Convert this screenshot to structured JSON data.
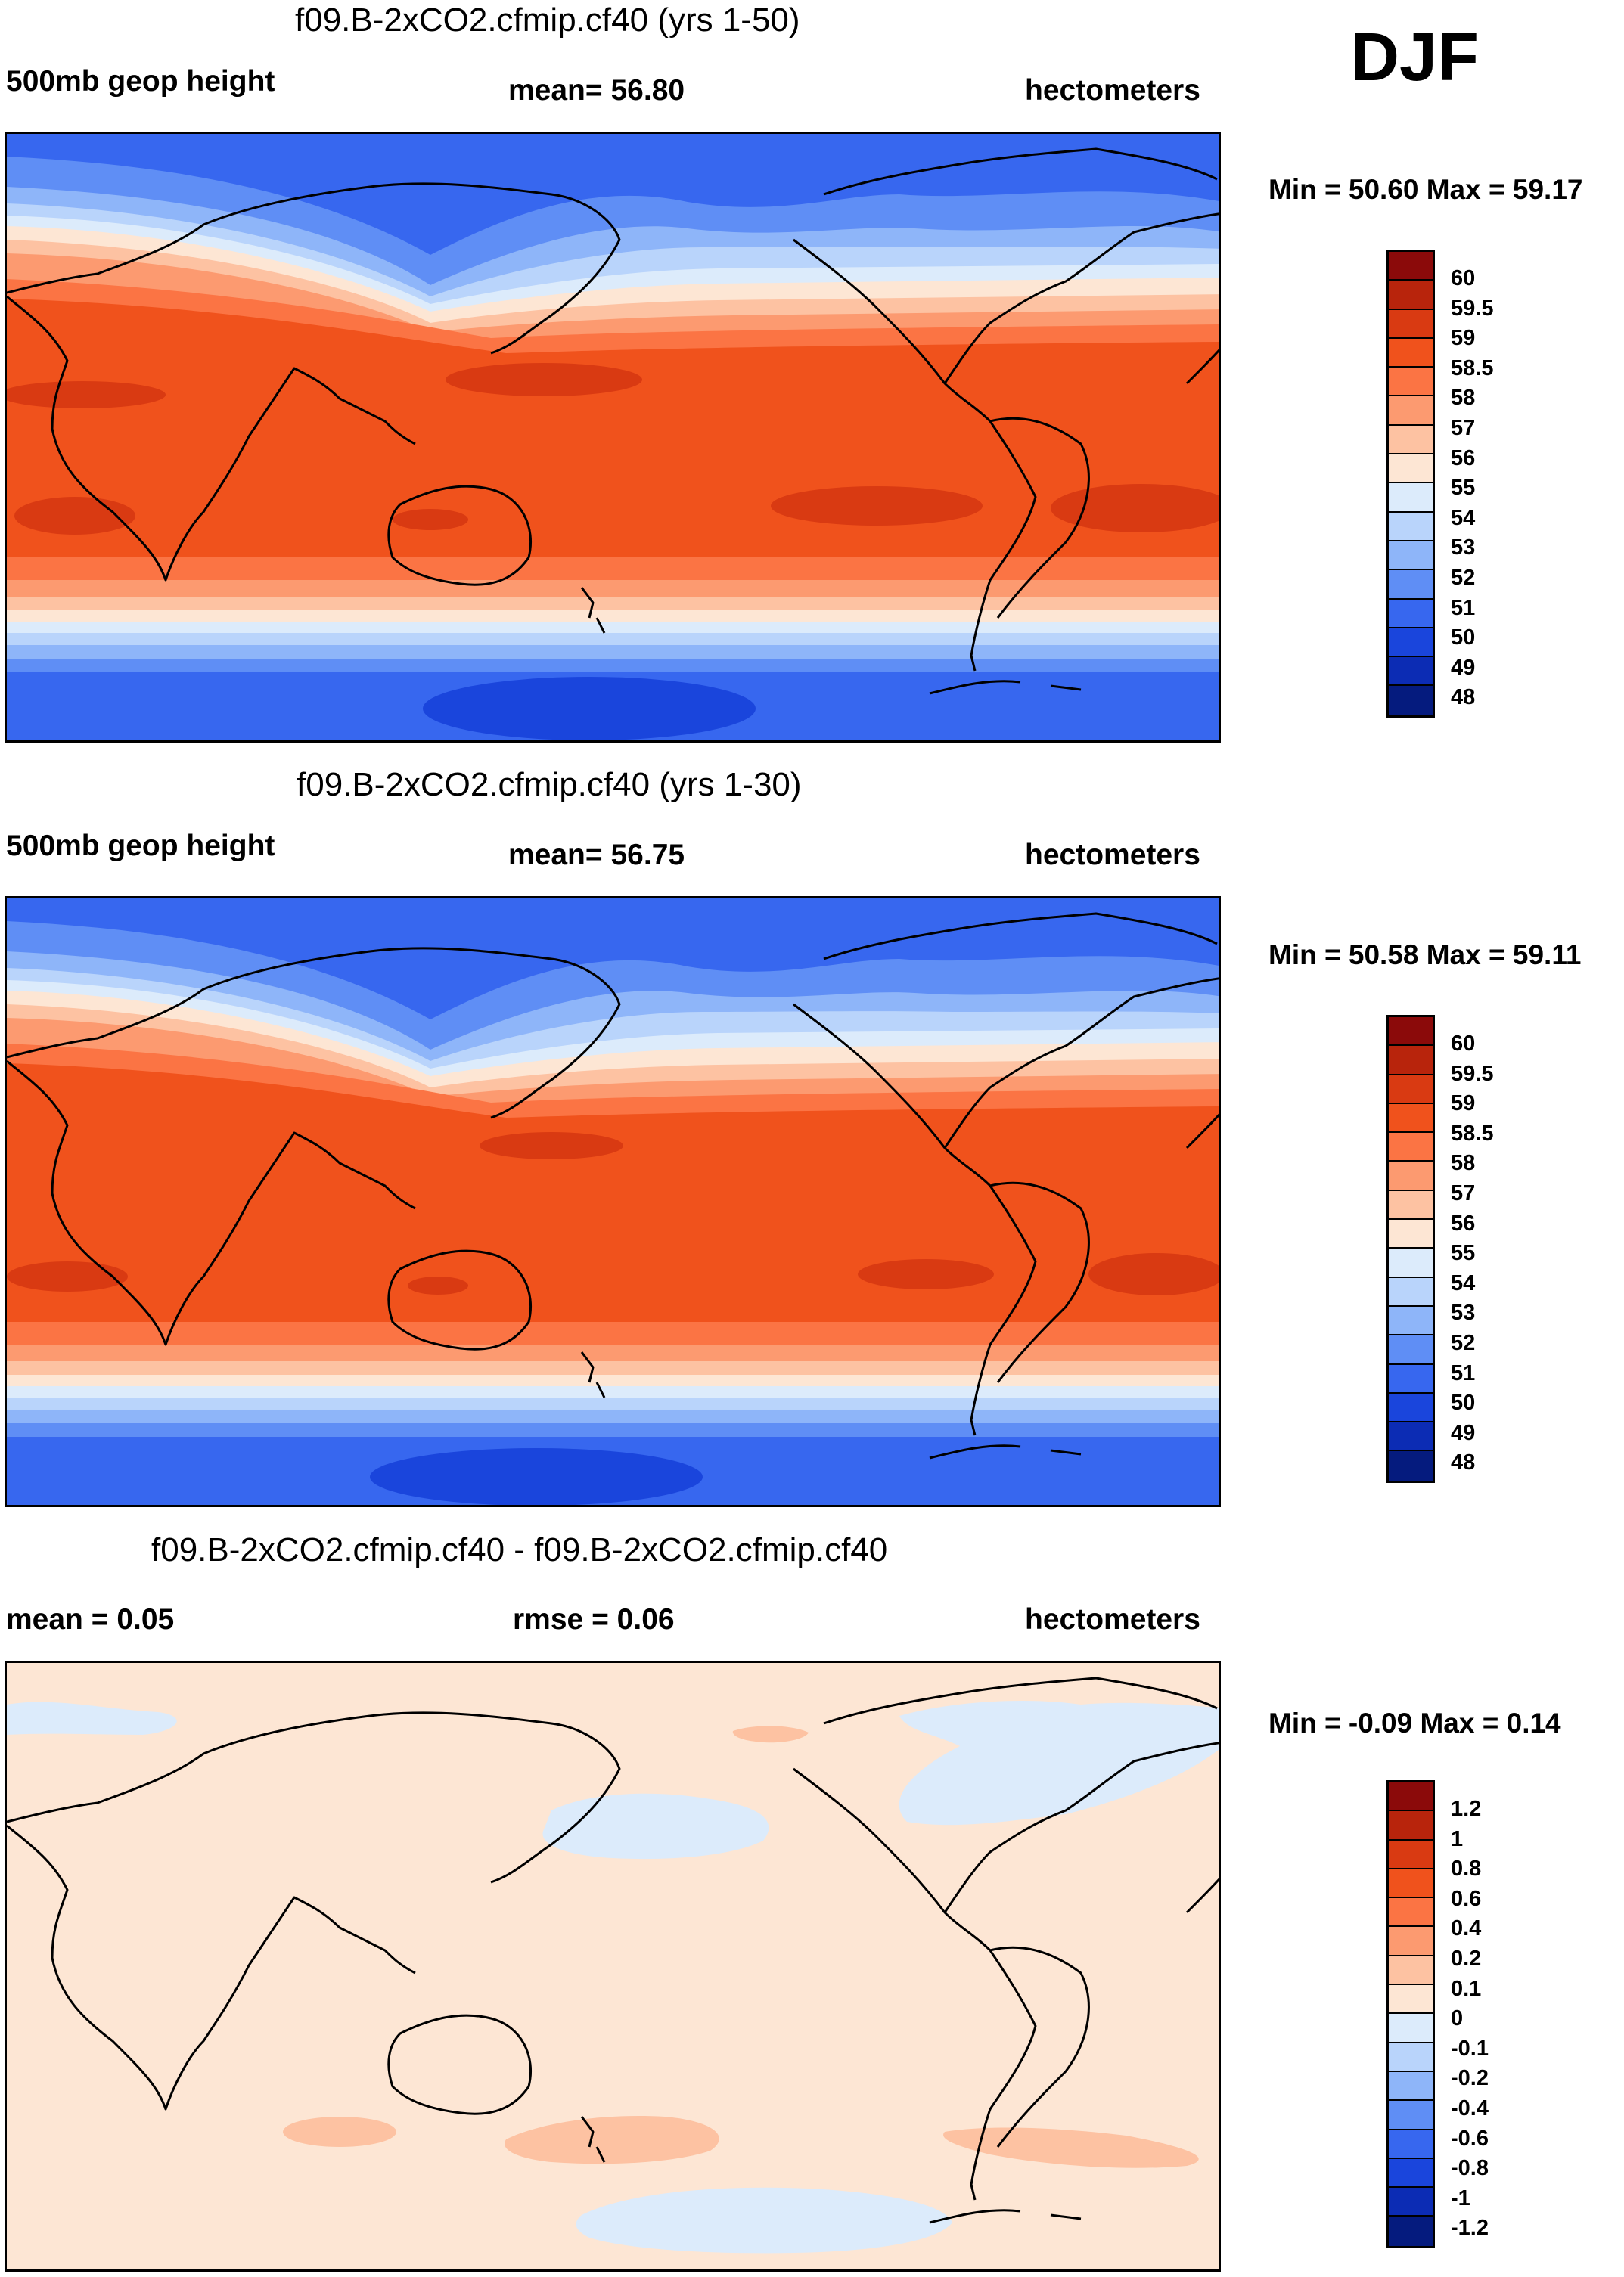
{
  "season": "DJF",
  "panels": [
    {
      "title": "f09.B-2xCO2.cfmip.cf40 (yrs 1-50)",
      "left_label": "500mb geop height",
      "mid_label": "mean=  56.80",
      "right_label": "hectometers",
      "minmax": "Min =  50.60 Max =  59.17"
    },
    {
      "title": "f09.B-2xCO2.cfmip.cf40 (yrs 1-30)",
      "left_label": "500mb geop height",
      "mid_label": "mean=  56.75",
      "right_label": "hectometers",
      "minmax": "Min =  50.58 Max =  59.11"
    },
    {
      "title": "f09.B-2xCO2.cfmip.cf40 - f09.B-2xCO2.cfmip.cf40",
      "left_label": "mean =   0.05",
      "mid_label": "rmse =   0.06",
      "right_label": "hectometers",
      "minmax": "Min =  -0.09 Max =   0.14"
    }
  ],
  "colorbars": {
    "abs": {
      "labels": [
        "60",
        "59.5",
        "59",
        "58.5",
        "58",
        "57",
        "56",
        "55",
        "54",
        "53",
        "52",
        "51",
        "50",
        "49",
        "48"
      ],
      "colors": [
        "#8b0a0a",
        "#b8240c",
        "#d93a12",
        "#f0521c",
        "#fb7444",
        "#fc9a70",
        "#fdc2a2",
        "#fde6d4",
        "#dcebfb",
        "#b9d4fb",
        "#8eb5f9",
        "#5f8ef5",
        "#3767ef",
        "#1a45dc",
        "#0c2cb4",
        "#051b7e"
      ]
    },
    "diff": {
      "labels": [
        "1.2",
        "1",
        "0.8",
        "0.6",
        "0.4",
        "0.2",
        "0.1",
        "0",
        "-0.1",
        "-0.2",
        "-0.4",
        "-0.6",
        "-0.8",
        "-1",
        "-1.2"
      ],
      "colors": [
        "#8b0a0a",
        "#b8240c",
        "#d93a12",
        "#f0521c",
        "#fb7444",
        "#fc9a70",
        "#fdc2a2",
        "#fde6d4",
        "#dcebfb",
        "#b9d4fb",
        "#8eb5f9",
        "#5f8ef5",
        "#3767ef",
        "#1a45dc",
        "#0c2cb4",
        "#051b7e"
      ]
    }
  }
}
